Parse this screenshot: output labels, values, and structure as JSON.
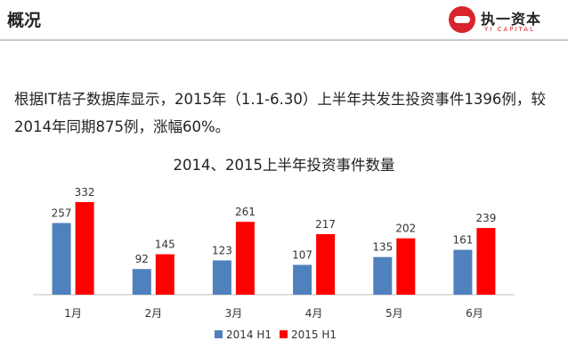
{
  "header": {
    "title": "概况",
    "logo_cn": "执一资本",
    "logo_en": "YI CAPITAL"
  },
  "summary_text": "根据IT桔子数据库显示，2015年（1.1-6.30）上半年共发生投资事件1396例，较2014年同期875例，涨幅60%。",
  "chart_data": {
    "type": "bar",
    "title": "2014、2015上半年投资事件数量",
    "categories": [
      "1月",
      "2月",
      "3月",
      "4月",
      "5月",
      "6月"
    ],
    "series": [
      {
        "name": "2014 H1",
        "color": "#4f81bd",
        "values": [
          257,
          92,
          123,
          107,
          135,
          161
        ]
      },
      {
        "name": "2015 H1",
        "color": "#ff0000",
        "values": [
          332,
          145,
          261,
          217,
          202,
          239
        ]
      }
    ],
    "ylim": [
      0,
      350
    ],
    "grid": false,
    "legend": "bottom"
  }
}
